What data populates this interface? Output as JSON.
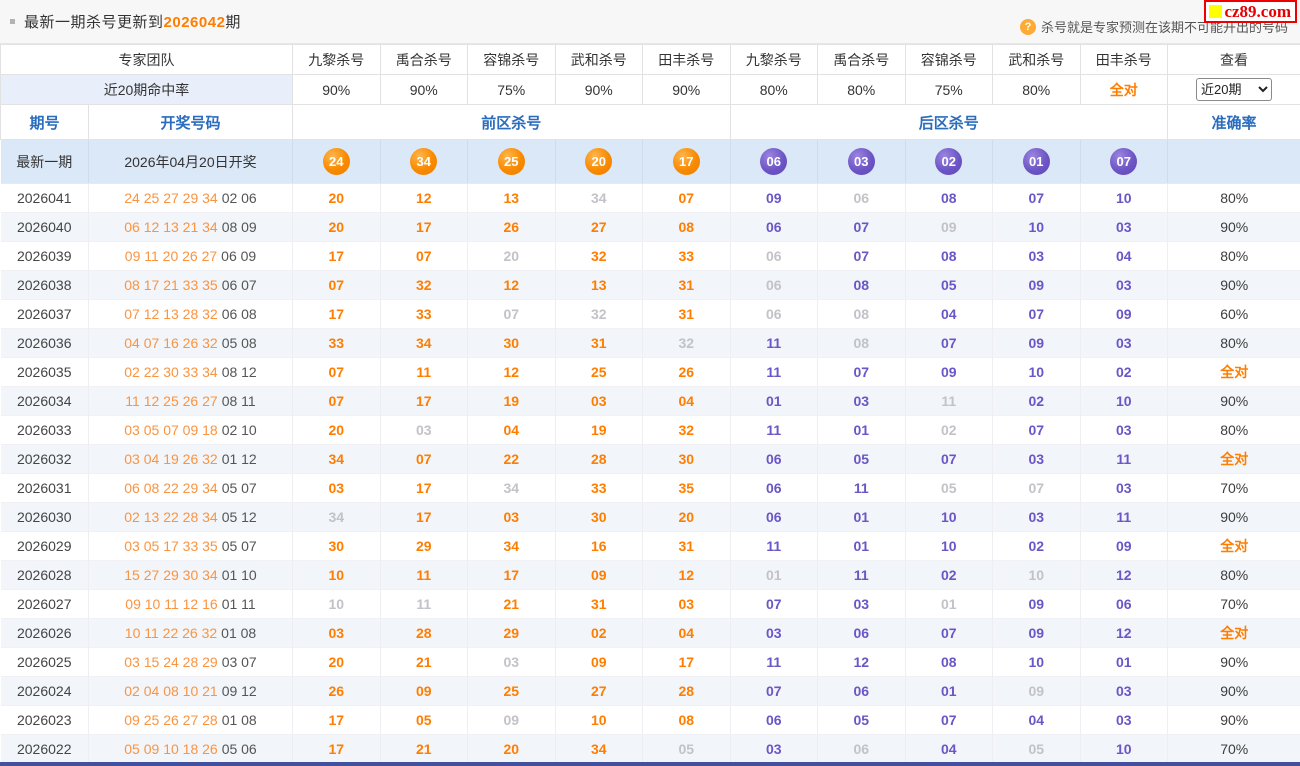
{
  "top_bar": {
    "title_prefix": "最新一期杀号更新到",
    "title_issue": "2026042",
    "title_suffix": "期",
    "help_icon": "?",
    "help_text": "杀号就是专家预测在该期不可能开出的号码",
    "logo_text": "cz89.com"
  },
  "colors": {
    "hit_orange": "#ff7e00",
    "hit_purple": "#6a56c6",
    "miss_gray": "#c2c2c8",
    "header_blue": "#2a6cbe",
    "latest_row_bg": "#dbe8f7",
    "alt_row_bg": "#f2f5fa",
    "logo_red": "#e60000",
    "logo_yellow": "#ffff00"
  },
  "table": {
    "expert_header": {
      "team_label": "专家团队",
      "experts": [
        "九黎杀号",
        "禹合杀号",
        "容锦杀号",
        "武和杀号",
        "田丰杀号",
        "九黎杀号",
        "禹合杀号",
        "容锦杀号",
        "武和杀号",
        "田丰杀号"
      ],
      "view_label": "查看"
    },
    "hit_rate_row": {
      "label": "近20期命中率",
      "rates": [
        "90%",
        "90%",
        "75%",
        "90%",
        "90%",
        "80%",
        "80%",
        "75%",
        "80%",
        "全对"
      ],
      "select_value": "近20期"
    },
    "section_header": {
      "issue": "期号",
      "draw": "开奖号码",
      "front": "前区杀号",
      "back": "后区杀号",
      "accuracy": "准确率"
    },
    "latest_row": {
      "label": "最新一期",
      "draw_date": "2026年04月20日开奖",
      "front_balls": [
        "24",
        "34",
        "25",
        "20",
        "17"
      ],
      "back_balls": [
        "06",
        "03",
        "02",
        "01",
        "07"
      ]
    },
    "rows": [
      {
        "issue": "2026041",
        "front_draw": "24 25 27 29 34",
        "back_draw": "02 06",
        "front_kills": [
          "20",
          "12",
          "13",
          "34",
          "07"
        ],
        "front_miss": [
          0,
          0,
          0,
          1,
          0
        ],
        "back_kills": [
          "09",
          "06",
          "08",
          "07",
          "10"
        ],
        "back_miss": [
          0,
          1,
          0,
          0,
          0
        ],
        "accuracy": "80%"
      },
      {
        "issue": "2026040",
        "front_draw": "06 12 13 21 34",
        "back_draw": "08 09",
        "front_kills": [
          "20",
          "17",
          "26",
          "27",
          "08"
        ],
        "front_miss": [
          0,
          0,
          0,
          0,
          0
        ],
        "back_kills": [
          "06",
          "07",
          "09",
          "10",
          "03"
        ],
        "back_miss": [
          0,
          0,
          1,
          0,
          0
        ],
        "accuracy": "90%"
      },
      {
        "issue": "2026039",
        "front_draw": "09 11 20 26 27",
        "back_draw": "06 09",
        "front_kills": [
          "17",
          "07",
          "20",
          "32",
          "33"
        ],
        "front_miss": [
          0,
          0,
          1,
          0,
          0
        ],
        "back_kills": [
          "06",
          "07",
          "08",
          "03",
          "04"
        ],
        "back_miss": [
          1,
          0,
          0,
          0,
          0
        ],
        "accuracy": "80%"
      },
      {
        "issue": "2026038",
        "front_draw": "08 17 21 33 35",
        "back_draw": "06 07",
        "front_kills": [
          "07",
          "32",
          "12",
          "13",
          "31"
        ],
        "front_miss": [
          0,
          0,
          0,
          0,
          0
        ],
        "back_kills": [
          "06",
          "08",
          "05",
          "09",
          "03"
        ],
        "back_miss": [
          1,
          0,
          0,
          0,
          0
        ],
        "accuracy": "90%"
      },
      {
        "issue": "2026037",
        "front_draw": "07 12 13 28 32",
        "back_draw": "06 08",
        "front_kills": [
          "17",
          "33",
          "07",
          "32",
          "31"
        ],
        "front_miss": [
          0,
          0,
          1,
          1,
          0
        ],
        "back_kills": [
          "06",
          "08",
          "04",
          "07",
          "09"
        ],
        "back_miss": [
          1,
          1,
          0,
          0,
          0
        ],
        "accuracy": "60%"
      },
      {
        "issue": "2026036",
        "front_draw": "04 07 16 26 32",
        "back_draw": "05 08",
        "front_kills": [
          "33",
          "34",
          "30",
          "31",
          "32"
        ],
        "front_miss": [
          0,
          0,
          0,
          0,
          1
        ],
        "back_kills": [
          "11",
          "08",
          "07",
          "09",
          "03"
        ],
        "back_miss": [
          0,
          1,
          0,
          0,
          0
        ],
        "accuracy": "80%"
      },
      {
        "issue": "2026035",
        "front_draw": "02 22 30 33 34",
        "back_draw": "08 12",
        "front_kills": [
          "07",
          "11",
          "12",
          "25",
          "26"
        ],
        "front_miss": [
          0,
          0,
          0,
          0,
          0
        ],
        "back_kills": [
          "11",
          "07",
          "09",
          "10",
          "02"
        ],
        "back_miss": [
          0,
          0,
          0,
          0,
          0
        ],
        "accuracy": "全对"
      },
      {
        "issue": "2026034",
        "front_draw": "11 12 25 26 27",
        "back_draw": "08 11",
        "front_kills": [
          "07",
          "17",
          "19",
          "03",
          "04"
        ],
        "front_miss": [
          0,
          0,
          0,
          0,
          0
        ],
        "back_kills": [
          "01",
          "03",
          "11",
          "02",
          "10"
        ],
        "back_miss": [
          0,
          0,
          1,
          0,
          0
        ],
        "accuracy": "90%"
      },
      {
        "issue": "2026033",
        "front_draw": "03 05 07 09 18",
        "back_draw": "02 10",
        "front_kills": [
          "20",
          "03",
          "04",
          "19",
          "32"
        ],
        "front_miss": [
          0,
          1,
          0,
          0,
          0
        ],
        "back_kills": [
          "11",
          "01",
          "02",
          "07",
          "03"
        ],
        "back_miss": [
          0,
          0,
          1,
          0,
          0
        ],
        "accuracy": "80%"
      },
      {
        "issue": "2026032",
        "front_draw": "03 04 19 26 32",
        "back_draw": "01 12",
        "front_kills": [
          "34",
          "07",
          "22",
          "28",
          "30"
        ],
        "front_miss": [
          0,
          0,
          0,
          0,
          0
        ],
        "back_kills": [
          "06",
          "05",
          "07",
          "03",
          "11"
        ],
        "back_miss": [
          0,
          0,
          0,
          0,
          0
        ],
        "accuracy": "全对"
      },
      {
        "issue": "2026031",
        "front_draw": "06 08 22 29 34",
        "back_draw": "05 07",
        "front_kills": [
          "03",
          "17",
          "34",
          "33",
          "35"
        ],
        "front_miss": [
          0,
          0,
          1,
          0,
          0
        ],
        "back_kills": [
          "06",
          "11",
          "05",
          "07",
          "03"
        ],
        "back_miss": [
          0,
          0,
          1,
          1,
          0
        ],
        "accuracy": "70%"
      },
      {
        "issue": "2026030",
        "front_draw": "02 13 22 28 34",
        "back_draw": "05 12",
        "front_kills": [
          "34",
          "17",
          "03",
          "30",
          "20"
        ],
        "front_miss": [
          1,
          0,
          0,
          0,
          0
        ],
        "back_kills": [
          "06",
          "01",
          "10",
          "03",
          "11"
        ],
        "back_miss": [
          0,
          0,
          0,
          0,
          0
        ],
        "accuracy": "90%"
      },
      {
        "issue": "2026029",
        "front_draw": "03 05 17 33 35",
        "back_draw": "05 07",
        "front_kills": [
          "30",
          "29",
          "34",
          "16",
          "31"
        ],
        "front_miss": [
          0,
          0,
          0,
          0,
          0
        ],
        "back_kills": [
          "11",
          "01",
          "10",
          "02",
          "09"
        ],
        "back_miss": [
          0,
          0,
          0,
          0,
          0
        ],
        "accuracy": "全对"
      },
      {
        "issue": "2026028",
        "front_draw": "15 27 29 30 34",
        "back_draw": "01 10",
        "front_kills": [
          "10",
          "11",
          "17",
          "09",
          "12"
        ],
        "front_miss": [
          0,
          0,
          0,
          0,
          0
        ],
        "back_kills": [
          "01",
          "11",
          "02",
          "10",
          "12"
        ],
        "back_miss": [
          1,
          0,
          0,
          1,
          0
        ],
        "accuracy": "80%"
      },
      {
        "issue": "2026027",
        "front_draw": "09 10 11 12 16",
        "back_draw": "01 11",
        "front_kills": [
          "10",
          "11",
          "21",
          "31",
          "03"
        ],
        "front_miss": [
          1,
          1,
          0,
          0,
          0
        ],
        "back_kills": [
          "07",
          "03",
          "01",
          "09",
          "06"
        ],
        "back_miss": [
          0,
          0,
          1,
          0,
          0
        ],
        "accuracy": "70%"
      },
      {
        "issue": "2026026",
        "front_draw": "10 11 22 26 32",
        "back_draw": "01 08",
        "front_kills": [
          "03",
          "28",
          "29",
          "02",
          "04"
        ],
        "front_miss": [
          0,
          0,
          0,
          0,
          0
        ],
        "back_kills": [
          "03",
          "06",
          "07",
          "09",
          "12"
        ],
        "back_miss": [
          0,
          0,
          0,
          0,
          0
        ],
        "accuracy": "全对"
      },
      {
        "issue": "2026025",
        "front_draw": "03 15 24 28 29",
        "back_draw": "03 07",
        "front_kills": [
          "20",
          "21",
          "03",
          "09",
          "17"
        ],
        "front_miss": [
          0,
          0,
          1,
          0,
          0
        ],
        "back_kills": [
          "11",
          "12",
          "08",
          "10",
          "01"
        ],
        "back_miss": [
          0,
          0,
          0,
          0,
          0
        ],
        "accuracy": "90%"
      },
      {
        "issue": "2026024",
        "front_draw": "02 04 08 10 21",
        "back_draw": "09 12",
        "front_kills": [
          "26",
          "09",
          "25",
          "27",
          "28"
        ],
        "front_miss": [
          0,
          0,
          0,
          0,
          0
        ],
        "back_kills": [
          "07",
          "06",
          "01",
          "09",
          "03"
        ],
        "back_miss": [
          0,
          0,
          0,
          1,
          0
        ],
        "accuracy": "90%"
      },
      {
        "issue": "2026023",
        "front_draw": "09 25 26 27 28",
        "back_draw": "01 08",
        "front_kills": [
          "17",
          "05",
          "09",
          "10",
          "08"
        ],
        "front_miss": [
          0,
          0,
          1,
          0,
          0
        ],
        "back_kills": [
          "06",
          "05",
          "07",
          "04",
          "03"
        ],
        "back_miss": [
          0,
          0,
          0,
          0,
          0
        ],
        "accuracy": "90%"
      },
      {
        "issue": "2026022",
        "front_draw": "05 09 10 18 26",
        "back_draw": "05 06",
        "front_kills": [
          "17",
          "21",
          "20",
          "34",
          "05"
        ],
        "front_miss": [
          0,
          0,
          0,
          0,
          1
        ],
        "back_kills": [
          "03",
          "06",
          "04",
          "05",
          "10"
        ],
        "back_miss": [
          0,
          1,
          0,
          1,
          0
        ],
        "accuracy": "70%"
      }
    ]
  }
}
